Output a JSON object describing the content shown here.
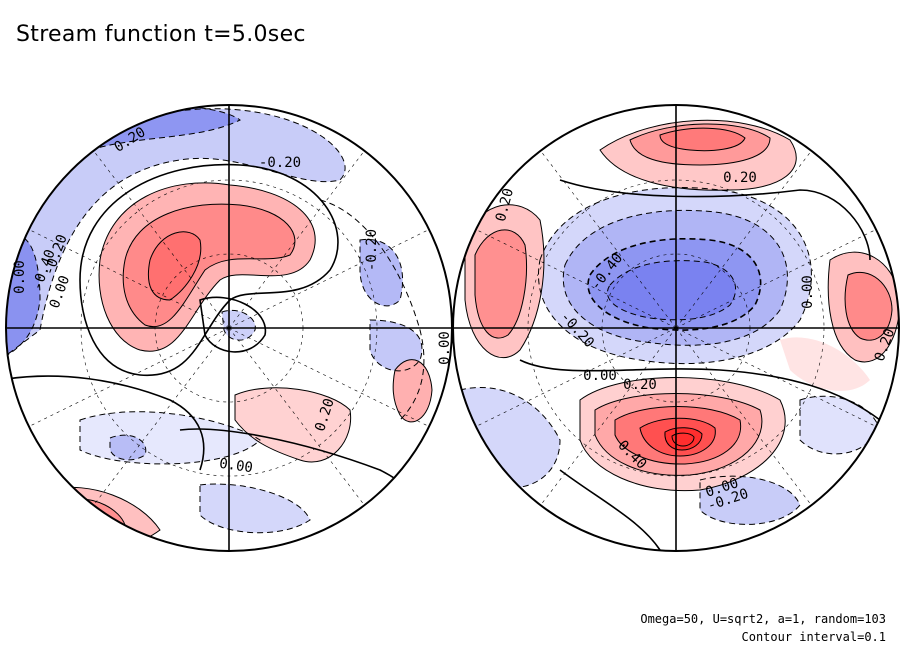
{
  "title": "Stream function t=5.0sec",
  "notes": {
    "params": "Omega=50, U=sqrt2, a=1, random=103",
    "interval": "Contour interval=0.1"
  },
  "colors": {
    "positive": "#ff4040",
    "negative": "#5a64f0",
    "background": "#ffffff"
  },
  "chart_data": [
    {
      "type": "heatmap",
      "hemisphere": "left",
      "contour_interval": 0.1,
      "positive_color": "red",
      "negative_color": "blue",
      "contour_labels": [
        {
          "text": "0.20",
          "value": 0.2
        },
        {
          "text": "-0.20",
          "value": -0.2
        },
        {
          "text": "-0.20",
          "value": -0.2
        },
        {
          "text": "0.00",
          "value": 0.0
        },
        {
          "text": "-0.40",
          "value": -0.4
        },
        {
          "text": "-0.20",
          "value": -0.2
        },
        {
          "text": "0.00",
          "value": 0.0
        },
        {
          "text": "0.20",
          "value": 0.2
        },
        {
          "text": "0.00",
          "value": 0.0
        },
        {
          "text": "0.00",
          "value": 0.0
        }
      ]
    },
    {
      "type": "heatmap",
      "hemisphere": "right",
      "contour_interval": 0.1,
      "positive_color": "red",
      "negative_color": "blue",
      "contour_labels": [
        {
          "text": "0.20",
          "value": 0.2
        },
        {
          "text": "0.20",
          "value": 0.2
        },
        {
          "text": "-0.40",
          "value": -0.4
        },
        {
          "text": "0.00",
          "value": 0.0
        },
        {
          "text": "-0.20",
          "value": -0.2
        },
        {
          "text": "0.00",
          "value": 0.0
        },
        {
          "text": "0.20",
          "value": 0.2
        },
        {
          "text": "0.20",
          "value": 0.2
        },
        {
          "text": "0.40",
          "value": 0.4
        },
        {
          "text": "0.00",
          "value": 0.0
        },
        {
          "text": "-0.20",
          "value": -0.2
        }
      ]
    }
  ]
}
